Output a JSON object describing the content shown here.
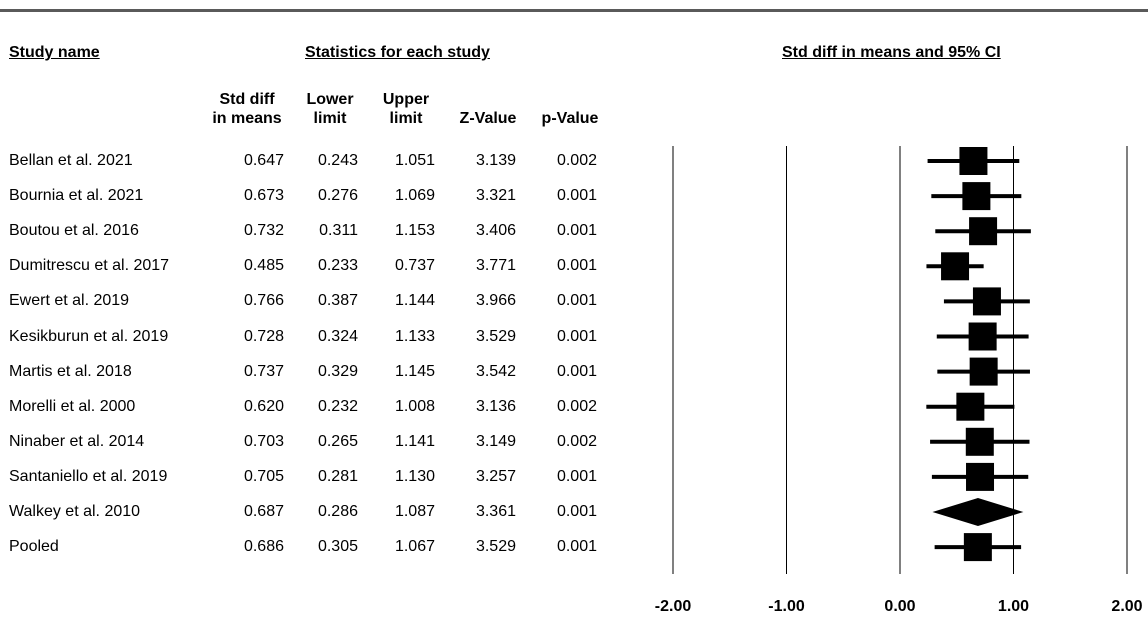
{
  "headers": {
    "study_name": "Study name",
    "statistics": "Statistics for each study",
    "forest": "Std diff in means and 95% CI"
  },
  "columns": {
    "std_diff": [
      "Std diff",
      "in means"
    ],
    "lower": [
      "Lower",
      "limit"
    ],
    "upper": [
      "Upper",
      "limit"
    ],
    "z": "Z-Value",
    "p": "p-Value"
  },
  "chart_data": {
    "type": "forest",
    "xlim": [
      -2.0,
      2.0
    ],
    "xticks": [
      "-2.00",
      "-1.00",
      "0.00",
      "1.00",
      "2.00"
    ],
    "tick_values": [
      -2,
      -1,
      0,
      1,
      2
    ],
    "rows": [
      {
        "name": "Bellan et al. 2021",
        "d": "0.647",
        "lower": "0.243",
        "upper": "1.051",
        "z": "3.139",
        "p": "0.002",
        "marker": "square"
      },
      {
        "name": "Bournia et al. 2021",
        "d": "0.673",
        "lower": "0.276",
        "upper": "1.069",
        "z": "3.321",
        "p": "0.001",
        "marker": "square"
      },
      {
        "name": "Boutou et al. 2016",
        "d": "0.732",
        "lower": "0.311",
        "upper": "1.153",
        "z": "3.406",
        "p": "0.001",
        "marker": "square"
      },
      {
        "name": "Dumitrescu et al. 2017",
        "d": "0.485",
        "lower": "0.233",
        "upper": "0.737",
        "z": "3.771",
        "p": "0.001",
        "marker": "square"
      },
      {
        "name": "Ewert et al. 2019",
        "d": "0.766",
        "lower": "0.387",
        "upper": "1.144",
        "z": "3.966",
        "p": "0.001",
        "marker": "square"
      },
      {
        "name": "Kesikburun et al. 2019",
        "d": "0.728",
        "lower": "0.324",
        "upper": "1.133",
        "z": "3.529",
        "p": "0.001",
        "marker": "square"
      },
      {
        "name": "Martis et al. 2018",
        "d": "0.737",
        "lower": "0.329",
        "upper": "1.145",
        "z": "3.542",
        "p": "0.001",
        "marker": "square"
      },
      {
        "name": "Morelli et al. 2000",
        "d": "0.620",
        "lower": "0.232",
        "upper": "1.008",
        "z": "3.136",
        "p": "0.002",
        "marker": "square"
      },
      {
        "name": "Ninaber et al. 2014",
        "d": "0.703",
        "lower": "0.265",
        "upper": "1.141",
        "z": "3.149",
        "p": "0.002",
        "marker": "square"
      },
      {
        "name": "Santaniello et al. 2019",
        "d": "0.705",
        "lower": "0.281",
        "upper": "1.130",
        "z": "3.257",
        "p": "0.001",
        "marker": "square"
      },
      {
        "name": "Walkey et al. 2010",
        "d": "0.687",
        "lower": "0.286",
        "upper": "1.087",
        "z": "3.361",
        "p": "0.001",
        "marker": "diamond"
      },
      {
        "name": "Pooled",
        "d": "0.686",
        "lower": "0.305",
        "upper": "1.067",
        "z": "3.529",
        "p": "0.001",
        "marker": "square"
      }
    ]
  }
}
